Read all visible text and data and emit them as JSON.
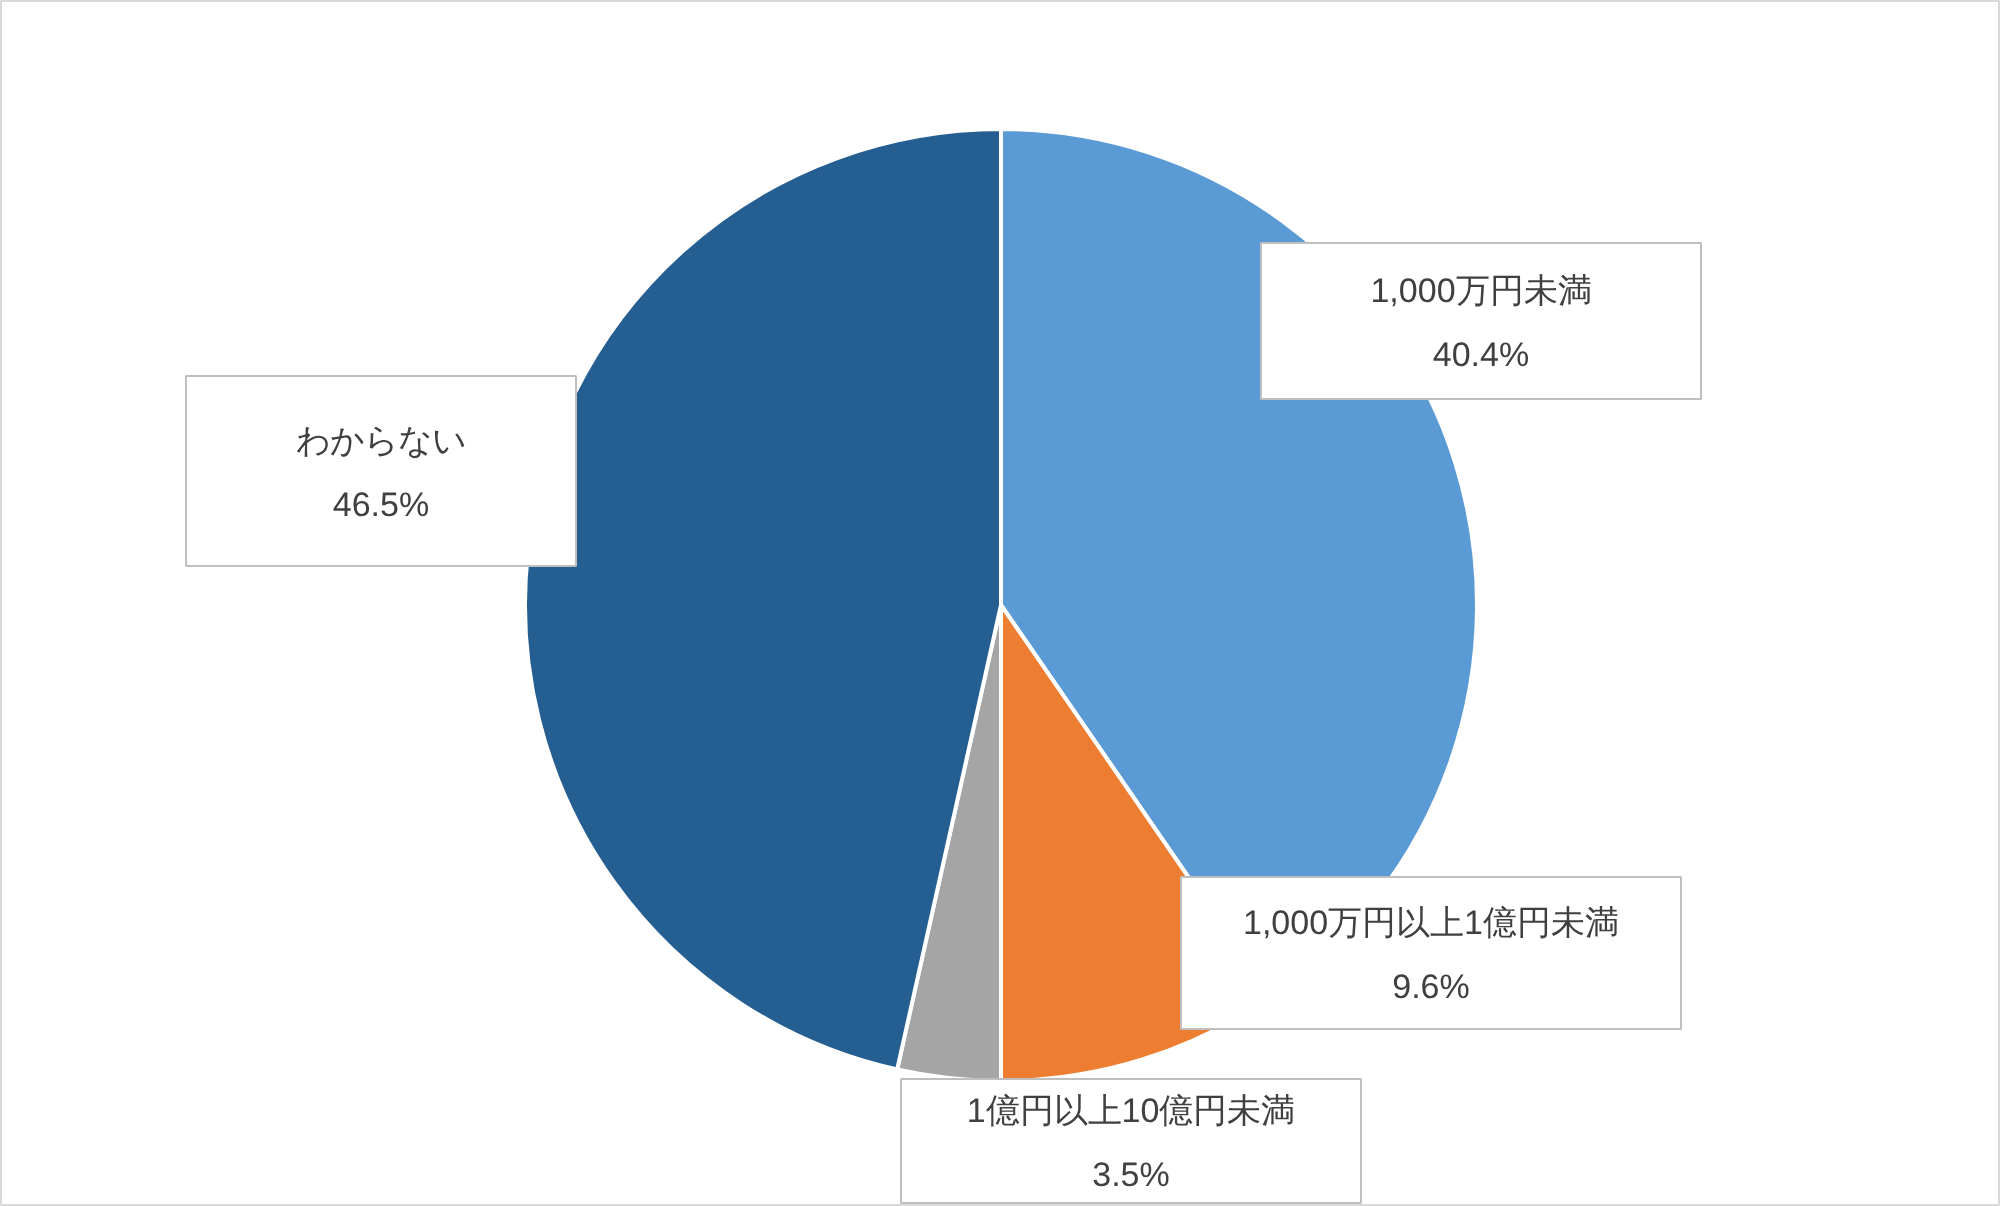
{
  "chart_data": {
    "type": "pie",
    "categories": [
      "1,000万円未満",
      "1,000万円以上1億円未満",
      "1億円以上10億円未満",
      "わからない"
    ],
    "values": [
      40.4,
      9.6,
      3.5,
      46.5
    ],
    "colors": [
      "#5b9bd5",
      "#ed7d31",
      "#a5a5a5",
      "#255e91"
    ],
    "value_labels": [
      "40.4%",
      "9.6%",
      "3.5%",
      "46.5%"
    ]
  }
}
